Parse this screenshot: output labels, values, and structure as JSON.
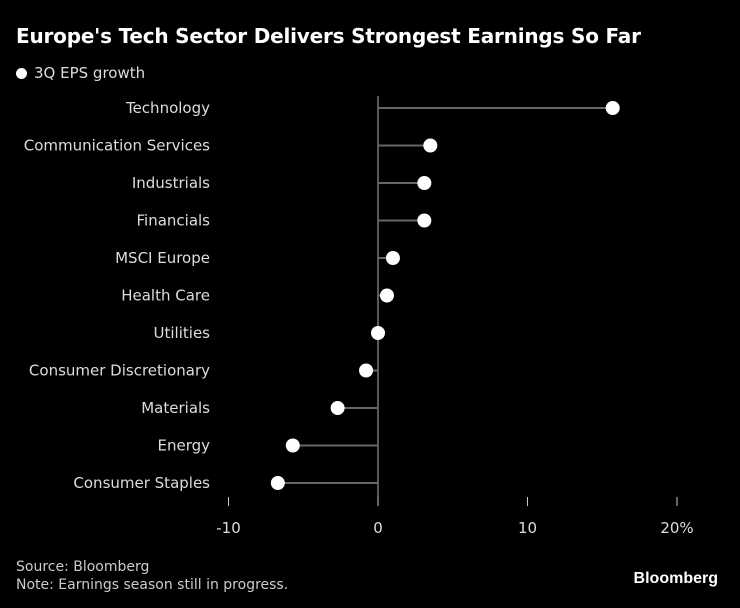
{
  "title": "Europe's Tech Sector Delivers Strongest Earnings So Far",
  "footer": {
    "source": "Source: Bloomberg",
    "note": "Note: Earnings season still in progress.",
    "logo": "Bloomberg"
  },
  "colors": {
    "background": "#000000",
    "marker": "#ffffff",
    "stem": "#666666"
  },
  "chart_data": {
    "type": "lollipop",
    "title": "Europe's Tech Sector Delivers Strongest Earnings So Far",
    "legend": [
      "3Q EPS growth"
    ],
    "legend_placement": "top-left",
    "categories": [
      "Technology",
      "Communication Services",
      "Industrials",
      "Financials",
      "MSCI Europe",
      "Health Care",
      "Utilities",
      "Consumer Discretionary",
      "Materials",
      "Energy",
      "Consumer Staples"
    ],
    "series": [
      {
        "name": "3Q EPS growth",
        "values": [
          15.7,
          3.5,
          3.1,
          3.1,
          1.0,
          0.6,
          0.0,
          -0.8,
          -2.7,
          -5.7,
          -6.7
        ]
      }
    ],
    "xlim": [
      -10,
      20
    ],
    "xticks": [
      -10,
      0,
      10,
      20
    ],
    "xtick_labels": [
      "-10",
      "0",
      "10",
      "20%"
    ],
    "grid": false
  }
}
